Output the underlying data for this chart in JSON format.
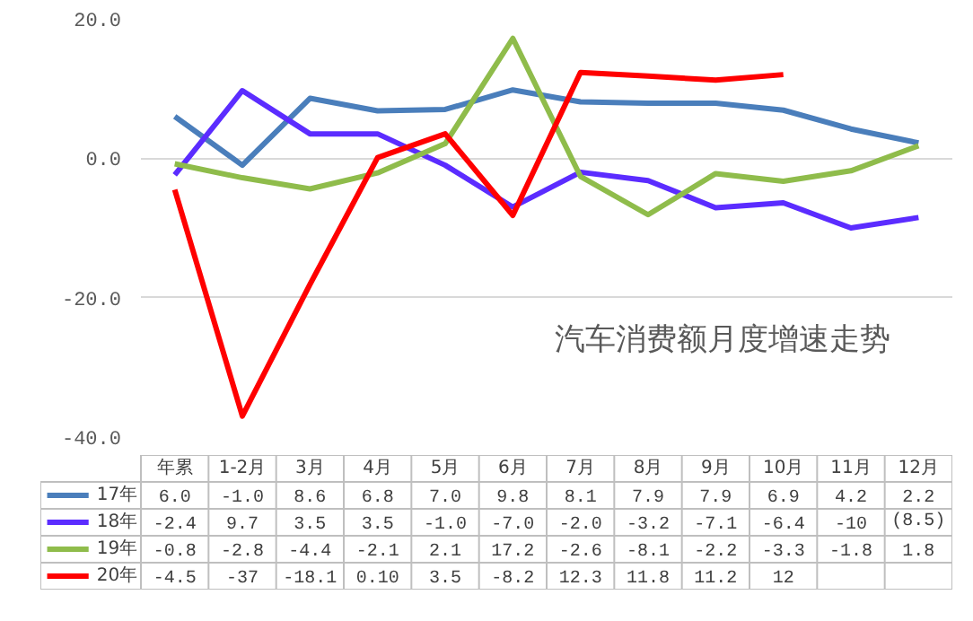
{
  "chart_data": {
    "type": "line",
    "title": "汽车消费额月度增速走势",
    "categories": [
      "年累",
      "1-2月",
      "3月",
      "4月",
      "5月",
      "6月",
      "7月",
      "8月",
      "9月",
      "10月",
      "11月",
      "12月"
    ],
    "ylim": [
      -40,
      20
    ],
    "yticks": [
      {
        "value": 20,
        "label": "20.0"
      },
      {
        "value": 0,
        "label": "0.0"
      },
      {
        "value": -20,
        "label": "-20.0"
      },
      {
        "value": -40,
        "label": "-40.0"
      }
    ],
    "grid": "y",
    "legend": "bottom left",
    "line_style": "solid",
    "marker": "none",
    "series": [
      {
        "name": "17年",
        "color": "#4a7ebb",
        "values": [
          6.0,
          -1.0,
          8.6,
          6.8,
          7.0,
          9.8,
          8.1,
          7.9,
          7.9,
          6.9,
          4.2,
          2.2
        ],
        "value_labels": [
          "6.0",
          "-1.0",
          "8.6",
          "6.8",
          "7.0",
          "9.8",
          "8.1",
          "7.9",
          "7.9",
          "6.9",
          "4.2",
          "2.2"
        ]
      },
      {
        "name": "18年",
        "color": "#5b2cff",
        "values": [
          -2.4,
          9.7,
          3.5,
          3.5,
          -1.0,
          -7.0,
          -2.0,
          -3.2,
          -7.1,
          -6.4,
          -10,
          -8.5
        ],
        "value_labels": [
          "-2.4",
          "9.7",
          "3.5",
          "3.5",
          "-1.0",
          "-7.0",
          "-2.0",
          "-3.2",
          "-7.1",
          "-6.4",
          "-10",
          "(8.5)"
        ]
      },
      {
        "name": "19年",
        "color": "#8fbc4b",
        "values": [
          -0.8,
          -2.8,
          -4.4,
          -2.1,
          2.1,
          17.2,
          -2.6,
          -8.1,
          -2.2,
          -3.3,
          -1.8,
          1.8
        ],
        "value_labels": [
          "-0.8",
          "-2.8",
          "-4.4",
          "-2.1",
          "2.1",
          "17.2",
          "-2.6",
          "-8.1",
          "-2.2",
          "-3.3",
          "-1.8",
          "1.8"
        ]
      },
      {
        "name": "20年",
        "color": "#ff0000",
        "values": [
          -4.5,
          -37,
          -18.1,
          0.1,
          3.5,
          -8.2,
          12.3,
          11.8,
          11.2,
          12,
          null,
          null
        ],
        "value_labels": [
          "-4.5",
          "-37",
          "-18.1",
          "0.10",
          "3.5",
          "-8.2",
          "12.3",
          "11.8",
          "11.2",
          "12",
          null,
          null
        ]
      }
    ]
  }
}
